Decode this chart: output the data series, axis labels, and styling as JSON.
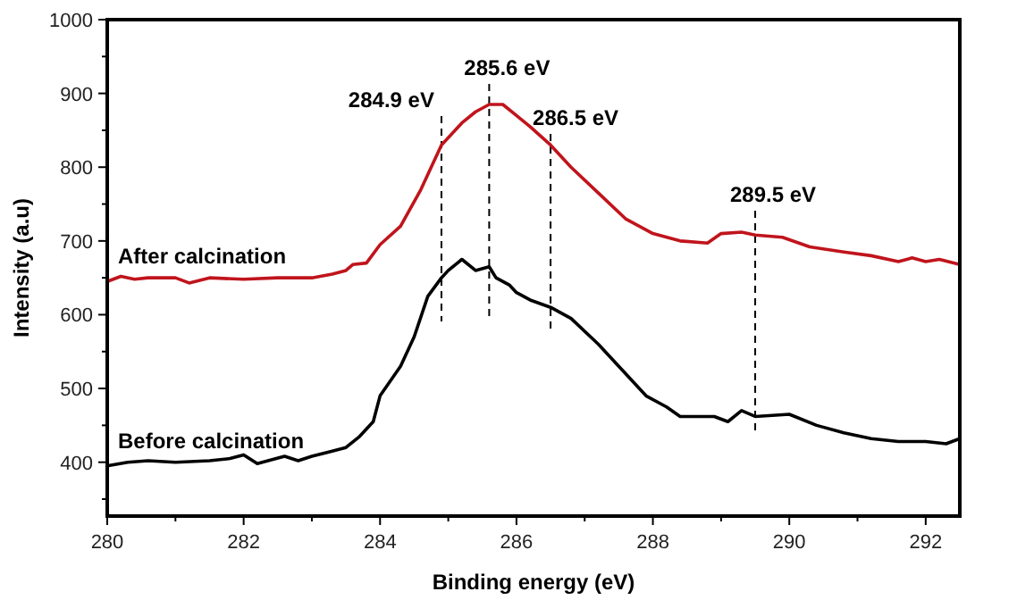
{
  "chart_data": {
    "type": "line",
    "xlabel": "Binding energy (eV)",
    "ylabel": "Intensity (a.u)",
    "xlim": [
      280,
      292.5
    ],
    "ylim": [
      327,
      1000
    ],
    "xticks": [
      280,
      {
        "value": 281,
        "label": null
      },
      282,
      {
        "value": 283,
        "label": null
      },
      284,
      {
        "value": 285,
        "label": null
      },
      286,
      {
        "value": 287,
        "label": null
      },
      288,
      {
        "value": 289,
        "label": null
      },
      290,
      {
        "value": 291,
        "label": null
      },
      292
    ],
    "yticks": [
      {
        "value": 350,
        "label": null
      },
      400,
      {
        "value": 450,
        "label": null
      },
      500,
      {
        "value": 550,
        "label": null
      },
      600,
      {
        "value": 650,
        "label": null
      },
      700,
      {
        "value": 750,
        "label": null
      },
      800,
      {
        "value": 850,
        "label": null
      },
      900,
      {
        "value": 950,
        "label": null
      },
      1000
    ],
    "grid": false,
    "line_style": "solid",
    "series": [
      {
        "name": "After calcination",
        "color": "#c0141c",
        "x": [
          280,
          280.2,
          280.4,
          280.6,
          281,
          281.2,
          281.5,
          282,
          282.5,
          283,
          283.3,
          283.5,
          283.6,
          283.8,
          284,
          284.3,
          284.6,
          284.9,
          285.2,
          285.4,
          285.6,
          285.8,
          286,
          286.2,
          286.5,
          286.8,
          287.2,
          287.6,
          288,
          288.4,
          288.8,
          289,
          289.3,
          289.5,
          289.9,
          290.3,
          290.8,
          291.2,
          291.6,
          291.8,
          292,
          292.2,
          292.5
        ],
        "values": [
          645,
          652,
          648,
          650,
          650,
          643,
          650,
          648,
          650,
          650,
          655,
          660,
          668,
          670,
          695,
          720,
          770,
          830,
          860,
          875,
          885,
          885,
          870,
          855,
          830,
          800,
          765,
          730,
          710,
          700,
          697,
          710,
          712,
          708,
          705,
          692,
          685,
          680,
          672,
          677,
          672,
          675,
          668
        ]
      },
      {
        "name": "Before calcination",
        "color": "#000000",
        "x": [
          280,
          280.3,
          280.6,
          281,
          281.5,
          281.8,
          282,
          282.2,
          282.6,
          282.8,
          283,
          283.3,
          283.5,
          283.7,
          283.9,
          284,
          284.3,
          284.5,
          284.7,
          284.9,
          285,
          285.2,
          285.4,
          285.6,
          285.7,
          285.9,
          286,
          286.2,
          286.5,
          286.8,
          287.2,
          287.6,
          287.9,
          288.2,
          288.4,
          288.9,
          289.1,
          289.3,
          289.5,
          290,
          290.4,
          290.8,
          291.2,
          291.6,
          292,
          292.3,
          292.5
        ],
        "values": [
          395,
          400,
          402,
          400,
          402,
          405,
          410,
          398,
          408,
          402,
          408,
          415,
          420,
          435,
          455,
          490,
          530,
          570,
          625,
          650,
          660,
          675,
          660,
          665,
          650,
          640,
          630,
          620,
          610,
          595,
          560,
          520,
          490,
          475,
          462,
          462,
          455,
          470,
          462,
          465,
          450,
          440,
          432,
          428,
          428,
          425,
          432
        ]
      }
    ],
    "ref_lines": [
      {
        "axis": "x",
        "value": 284.9,
        "label": "284.9 eV",
        "line_style": "dashed",
        "color": "#000000"
      },
      {
        "axis": "x",
        "value": 285.6,
        "label": "285.6 eV",
        "line_style": "dashed",
        "color": "#000000"
      },
      {
        "axis": "x",
        "value": 286.5,
        "label": "286.5 eV",
        "line_style": "dashed",
        "color": "#000000"
      },
      {
        "axis": "x",
        "value": 289.5,
        "label": "289.5 eV",
        "line_style": "dashed",
        "color": "#000000"
      }
    ]
  }
}
